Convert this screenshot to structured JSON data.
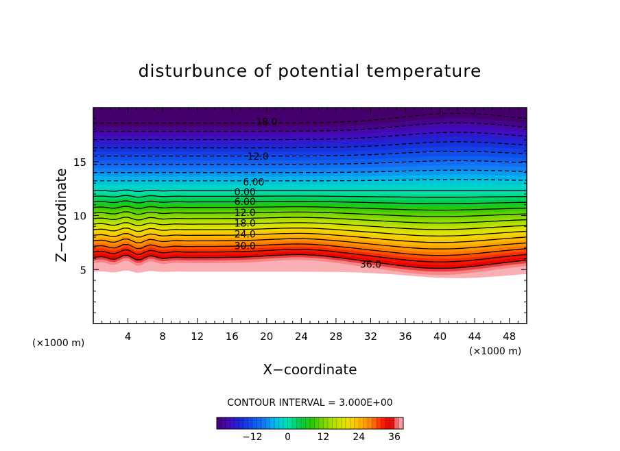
{
  "chart_data": {
    "type": "heatmap",
    "title": "disturbunce of potential temperature",
    "xlabel": "X−coordinate",
    "ylabel": "Z−coordinate",
    "x_unit": "(×1000 m)",
    "y_unit": "(×1000 m)",
    "xlim": [
      0,
      50
    ],
    "ylim": [
      0,
      20
    ],
    "x_ticks": [
      4,
      8,
      12,
      16,
      20,
      24,
      28,
      32,
      36,
      40,
      44,
      48
    ],
    "y_ticks": [
      5,
      10,
      15
    ],
    "contour_interval_text": "CONTOUR INTERVAL = 3.000E+00",
    "contour_interval": 3,
    "value_range": [
      -24,
      39
    ],
    "colorbar_ticks": [
      {
        "value": -12,
        "label": "−12"
      },
      {
        "value": 0,
        "label": "0"
      },
      {
        "value": 12,
        "label": "12"
      },
      {
        "value": 24,
        "label": "24"
      },
      {
        "value": 36,
        "label": "36"
      }
    ],
    "contour_labels": [
      {
        "text": "18.0",
        "value": -18,
        "x": 20,
        "z": 18.7
      },
      {
        "text": "12.0",
        "value": -12,
        "x": 19,
        "z": 15.5
      },
      {
        "text": "6.00",
        "value": -6,
        "x": 18.5,
        "z": 13.1
      },
      {
        "text": "0.00",
        "value": 0,
        "x": 17.5,
        "z": 12.2
      },
      {
        "text": "6.00",
        "value": 6,
        "x": 17.5,
        "z": 11.3
      },
      {
        "text": "12.0",
        "value": 12,
        "x": 17.5,
        "z": 10.3
      },
      {
        "text": "18.0",
        "value": 18,
        "x": 17.5,
        "z": 9.3
      },
      {
        "text": "24.0",
        "value": 24,
        "x": 17.5,
        "z": 8.3
      },
      {
        "text": "30.0",
        "value": 30,
        "x": 17.5,
        "z": 7.2
      },
      {
        "text": "36.0",
        "value": 36,
        "x": 32,
        "z": 5.5
      }
    ],
    "contour_levels": [
      -24,
      -21,
      -18,
      -15,
      -12,
      -9,
      -6,
      -3,
      0,
      3,
      6,
      9,
      12,
      15,
      18,
      21,
      24,
      27,
      30,
      33,
      36
    ],
    "grid": false,
    "legend": "colorbar-bottom"
  }
}
